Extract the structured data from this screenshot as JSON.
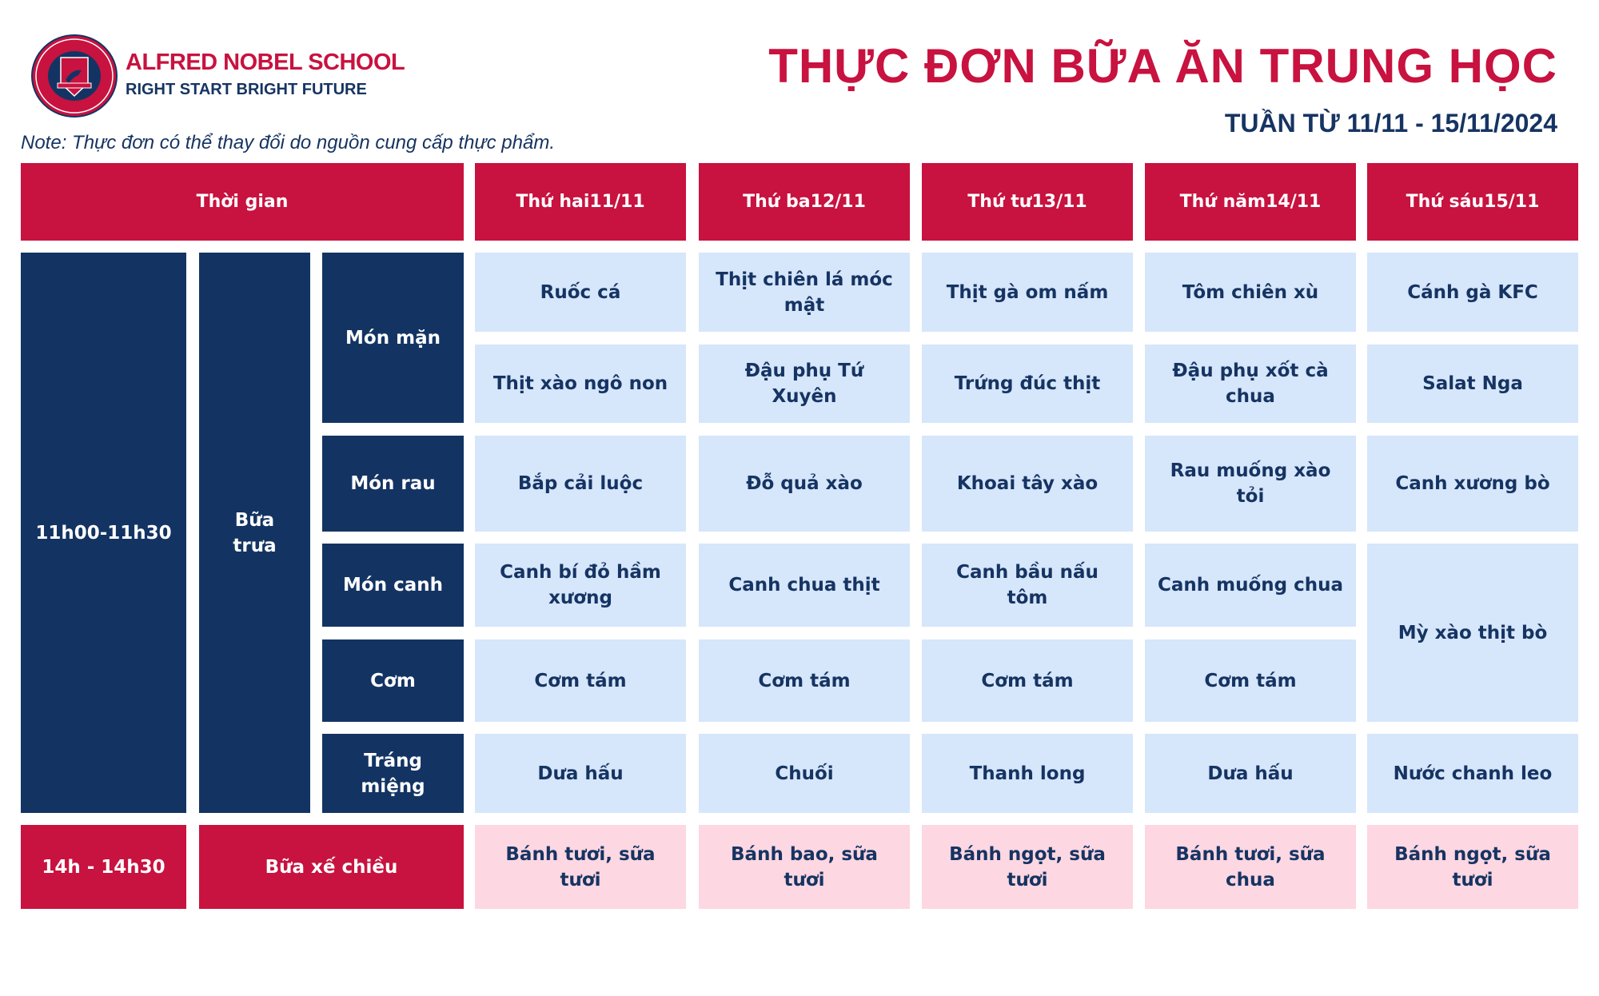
{
  "header": {
    "logo_text": "ALFRED NOBEL SCHOOL · RIGHT START BRIGHT FUTURE · ANS",
    "school_name": "ALFRED NOBEL SCHOOL",
    "slogan": "RIGHT START  BRIGHT FUTURE",
    "title": "THỰC ĐƠN BỮA ĂN TRUNG HỌC",
    "week": "TUẦN TỪ 11/11 - 15/11/2024",
    "note": "Note: Thực đơn có thể thay đổi do nguồn cung cấp thực phẩm."
  },
  "colors": {
    "red": "#C8123F",
    "navy": "#133463",
    "light_blue": "#D6E6FB",
    "pink": "#FDD7E2"
  },
  "table": {
    "time_header": "Thời gian",
    "lunch_time": "11h00-11h30",
    "lunch_label": "Bữa trưa",
    "categories": [
      "Món mặn",
      "Món rau",
      "Món canh",
      "Cơm",
      "Tráng miệng"
    ],
    "snack_time": "14h - 14h30",
    "snack_label": "Bữa xế chiều",
    "days": [
      {
        "name": "Thứ hai",
        "date": "11/11",
        "man": [
          "Ruốc cá",
          "Thịt xào ngô non"
        ],
        "rau": "Bắp cải luộc",
        "canh": "Canh bí đỏ hầm xương",
        "com": "Cơm tám",
        "trang_mieng": "Dưa hấu",
        "snack": "Bánh tươi, sữa tươi"
      },
      {
        "name": "Thứ ba",
        "date": "12/11",
        "man": [
          "Thịt chiên lá móc mật",
          "Đậu phụ Tứ Xuyên"
        ],
        "rau": "Đỗ quả xào",
        "canh": "Canh chua thịt",
        "com": "Cơm tám",
        "trang_mieng": "Chuối",
        "snack": "Bánh bao, sữa tươi"
      },
      {
        "name": "Thứ tư",
        "date": "13/11",
        "man": [
          "Thịt gà om nấm",
          "Trứng đúc thịt"
        ],
        "rau": "Khoai tây xào",
        "canh": "Canh bầu nấu tôm",
        "com": "Cơm tám",
        "trang_mieng": "Thanh long",
        "snack": "Bánh ngọt, sữa tươi"
      },
      {
        "name": "Thứ năm",
        "date": "14/11",
        "man": [
          "Tôm chiên xù",
          "Đậu phụ xốt cà chua"
        ],
        "rau": "Rau muống xào tỏi",
        "canh": "Canh muống chua",
        "com": "Cơm tám",
        "trang_mieng": "Dưa hấu",
        "snack": "Bánh tươi, sữa chua"
      },
      {
        "name": "Thứ sáu",
        "date": "15/11",
        "man": [
          "Cánh gà KFC",
          "Salat Nga"
        ],
        "rau": "Canh xương bò",
        "canh_com_merged": "Mỳ xào thịt bò",
        "trang_mieng": "Nước chanh leo",
        "snack": "Bánh ngọt, sữa tươi"
      }
    ]
  }
}
